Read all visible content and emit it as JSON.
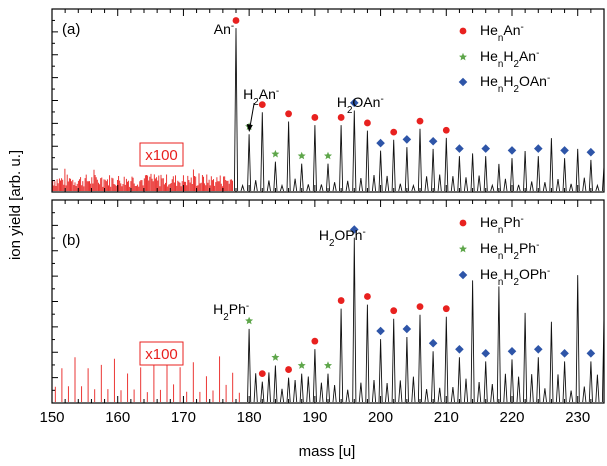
{
  "chart_data": [
    {
      "type": "line",
      "panel_label": "(a)",
      "xlim": [
        150,
        234
      ],
      "scaled_region_label": "x100",
      "annotations": [
        {
          "base": "An",
          "sup": "-",
          "x": 178
        },
        {
          "base": "H",
          "sub": "2",
          "base2": "An",
          "sup": "-",
          "x": 180
        },
        {
          "base": "H",
          "sub": "2",
          "base2": "OAn",
          "sup": "-",
          "x": 196
        }
      ],
      "legend": [
        {
          "label_parts": [
            "He",
            "n",
            "An",
            "-"
          ],
          "marker": "circle",
          "color": "#e8211f"
        },
        {
          "label_parts": [
            "He",
            "n",
            "H",
            "2",
            "An",
            "-"
          ],
          "marker": "star",
          "color": "#5ea64a"
        },
        {
          "label_parts": [
            "He",
            "n",
            "H",
            "2",
            "OAn",
            "-"
          ],
          "marker": "diamond",
          "color": "#2e55a8"
        }
      ],
      "series": [
        {
          "label": "HenAn-",
          "marker": "circle",
          "color": "#e8211f",
          "x": [
            178,
            182,
            186,
            190,
            194,
            198,
            202,
            206,
            210
          ],
          "y": [
            0.91,
            0.45,
            0.4,
            0.38,
            0.38,
            0.35,
            0.3,
            0.36,
            0.31
          ]
        },
        {
          "label": "HenH2An-",
          "marker": "star",
          "color": "#5ea64a",
          "x": [
            180,
            184,
            188,
            192
          ],
          "y": [
            0.33,
            0.18,
            0.17,
            0.17
          ]
        },
        {
          "label": "HenH2OAn-",
          "marker": "diamond",
          "color": "#2e55a8",
          "x": [
            196,
            200,
            204,
            208,
            212,
            216,
            220,
            224,
            228,
            232
          ],
          "y": [
            0.46,
            0.24,
            0.26,
            0.25,
            0.21,
            0.21,
            0.2,
            0.21,
            0.2,
            0.19
          ]
        }
      ]
    },
    {
      "type": "line",
      "panel_label": "(b)",
      "xlim": [
        150,
        234
      ],
      "xlabel": "mass [u]",
      "ylabel": "ion yield [arb. u.]",
      "xticks": [
        150,
        160,
        170,
        180,
        190,
        200,
        210,
        220,
        230
      ],
      "scaled_region_label": "x100",
      "annotations": [
        {
          "base": "H",
          "sub": "2",
          "base2": "Ph",
          "sup": "-",
          "x": 180
        },
        {
          "base": "H",
          "sub": "2",
          "base2": "OPh",
          "sup": "-",
          "x": 196
        }
      ],
      "legend": [
        {
          "label_parts": [
            "He",
            "n",
            "Ph",
            "-"
          ],
          "marker": "circle",
          "color": "#e8211f"
        },
        {
          "label_parts": [
            "He",
            "n",
            "H",
            "2",
            "Ph",
            "-"
          ],
          "marker": "star",
          "color": "#5ea64a"
        },
        {
          "label_parts": [
            "He",
            "n",
            "H",
            "2",
            "OPh",
            "-"
          ],
          "marker": "diamond",
          "color": "#2e55a8"
        }
      ],
      "series": [
        {
          "label": "HenPh-",
          "marker": "circle",
          "color": "#e8211f",
          "x": [
            182,
            186,
            190,
            194,
            198,
            202,
            206,
            210
          ],
          "y": [
            0.12,
            0.14,
            0.28,
            0.48,
            0.5,
            0.43,
            0.45,
            0.44
          ]
        },
        {
          "label": "HenH2Ph-",
          "marker": "star",
          "color": "#5ea64a",
          "x": [
            180,
            184,
            188,
            192
          ],
          "y": [
            0.38,
            0.2,
            0.16,
            0.16
          ]
        },
        {
          "label": "HenH2OPh-",
          "marker": "diamond",
          "color": "#2e55a8",
          "x": [
            196,
            200,
            204,
            208,
            212,
            216,
            220,
            224,
            228,
            232
          ],
          "y": [
            0.83,
            0.33,
            0.34,
            0.27,
            0.24,
            0.22,
            0.23,
            0.24,
            0.22,
            0.22
          ]
        }
      ]
    }
  ]
}
